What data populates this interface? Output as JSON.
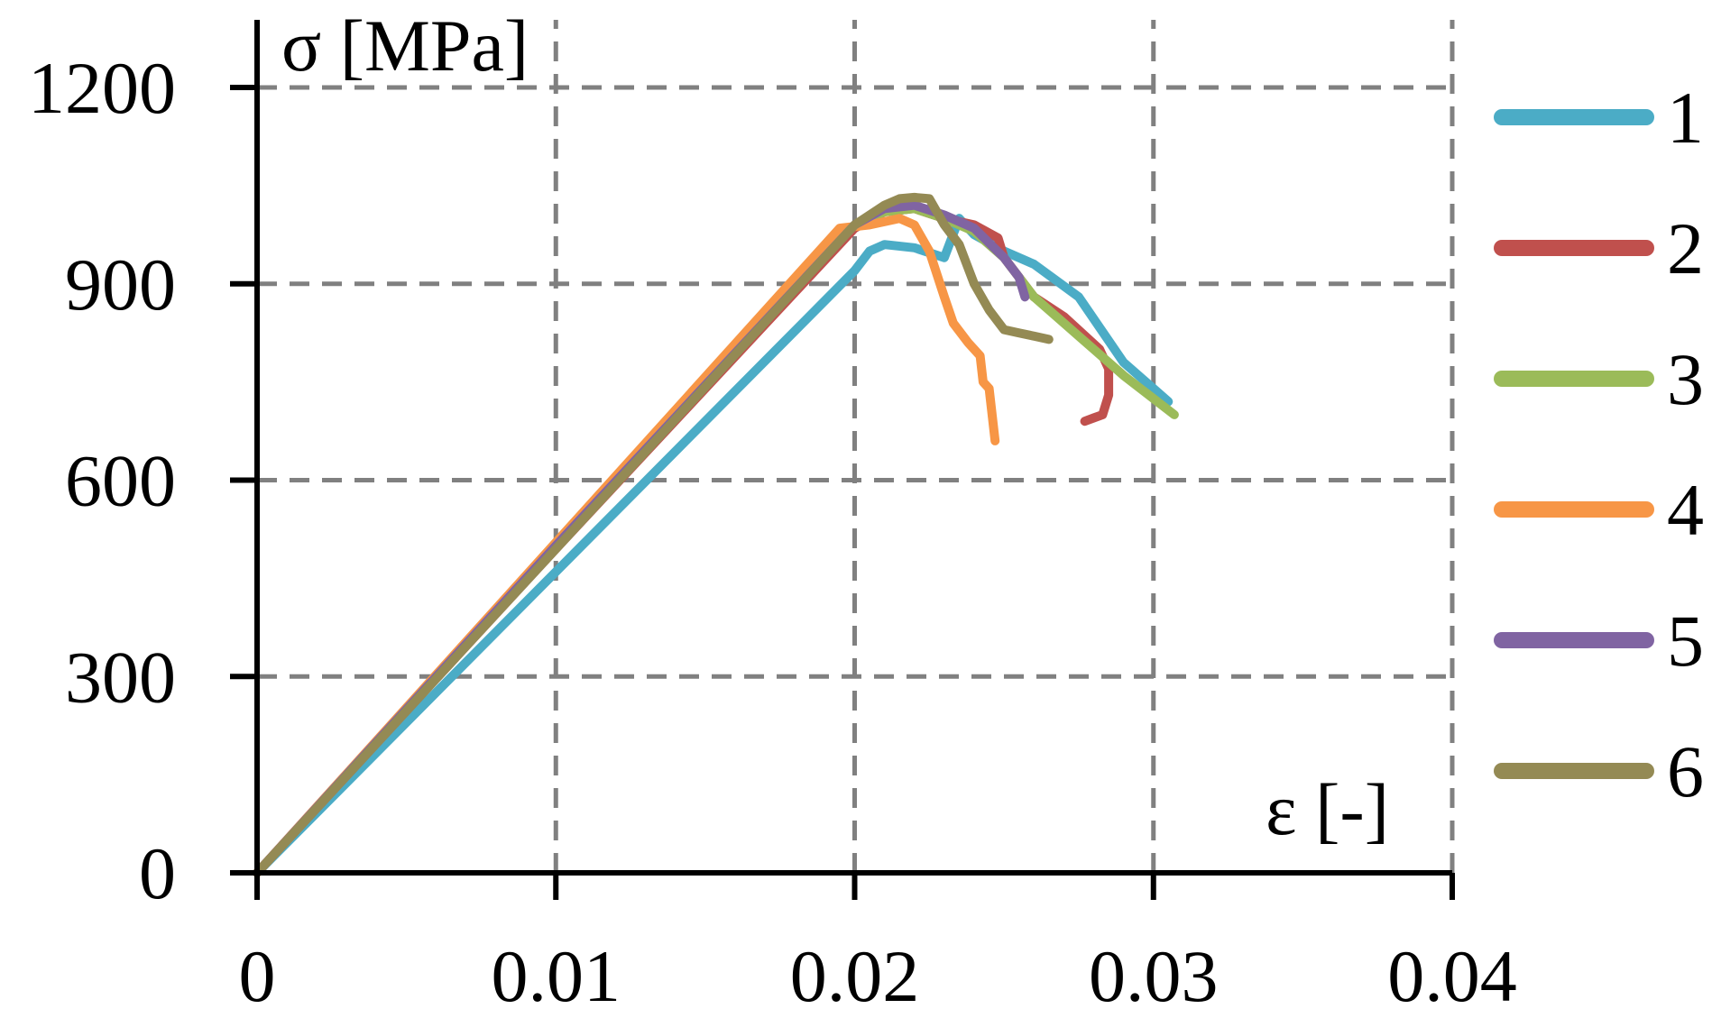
{
  "chart_data": {
    "type": "line",
    "xlabel": "ε [-]",
    "ylabel": "σ [MPa]",
    "xlim": [
      0,
      0.04
    ],
    "ylim": [
      0,
      1200
    ],
    "xticks": [
      0,
      0.01,
      0.02,
      0.03,
      0.04
    ],
    "xtick_labels": [
      "0",
      "0.01",
      "0.02",
      "0.03",
      "0.04"
    ],
    "yticks": [
      0,
      300,
      600,
      900,
      1200
    ],
    "ytick_labels": [
      "0",
      "300",
      "600",
      "900",
      "1200"
    ],
    "grid": true,
    "legend_position": "right",
    "series": [
      {
        "name": "1",
        "color": "#4BACC6",
        "x": [
          0,
          0.01,
          0.02,
          0.0205,
          0.021,
          0.022,
          0.023,
          0.0235,
          0.024,
          0.025,
          0.026,
          0.0275,
          0.029,
          0.03,
          0.0305
        ],
        "y": [
          0,
          460,
          920,
          950,
          960,
          955,
          940,
          1000,
          975,
          950,
          930,
          880,
          780,
          740,
          720
        ]
      },
      {
        "name": "2",
        "color": "#C0504D",
        "x": [
          0,
          0.01,
          0.02,
          0.021,
          0.022,
          0.023,
          0.024,
          0.0248,
          0.025,
          0.026,
          0.027,
          0.0282,
          0.0285,
          0.0285,
          0.0283,
          0.028,
          0.0277
        ],
        "y": [
          0,
          495,
          985,
          1010,
          1015,
          1000,
          990,
          970,
          940,
          880,
          850,
          800,
          770,
          730,
          700,
          695,
          690
        ]
      },
      {
        "name": "3",
        "color": "#9BBB59",
        "x": [
          0,
          0.01,
          0.02,
          0.021,
          0.022,
          0.023,
          0.024,
          0.025,
          0.026,
          0.027,
          0.028,
          0.029,
          0.0307
        ],
        "y": [
          0,
          500,
          990,
          1010,
          1015,
          1000,
          980,
          940,
          880,
          840,
          800,
          760,
          700
        ]
      },
      {
        "name": "4",
        "color": "#F79646",
        "x": [
          0,
          0.01,
          0.0195,
          0.0205,
          0.0215,
          0.022,
          0.0225,
          0.023,
          0.0233,
          0.0238,
          0.0242,
          0.0243,
          0.0245,
          0.0246,
          0.0247
        ],
        "y": [
          0,
          505,
          985,
          990,
          1000,
          990,
          950,
          880,
          840,
          810,
          790,
          750,
          740,
          700,
          660
        ]
      },
      {
        "name": "5",
        "color": "#8064A2",
        "x": [
          0,
          0.01,
          0.02,
          0.021,
          0.022,
          0.023,
          0.024,
          0.025,
          0.0255,
          0.0257
        ],
        "y": [
          0,
          500,
          990,
          1015,
          1020,
          1005,
          985,
          940,
          910,
          880
        ]
      },
      {
        "name": "6",
        "color": "#948A54",
        "x": [
          0,
          0.01,
          0.02,
          0.021,
          0.0215,
          0.022,
          0.0225,
          0.023,
          0.0235,
          0.024,
          0.0245,
          0.025,
          0.0255,
          0.026,
          0.0265
        ],
        "y": [
          0,
          495,
          990,
          1020,
          1030,
          1032,
          1030,
          990,
          960,
          900,
          860,
          830,
          825,
          820,
          815
        ]
      }
    ]
  }
}
